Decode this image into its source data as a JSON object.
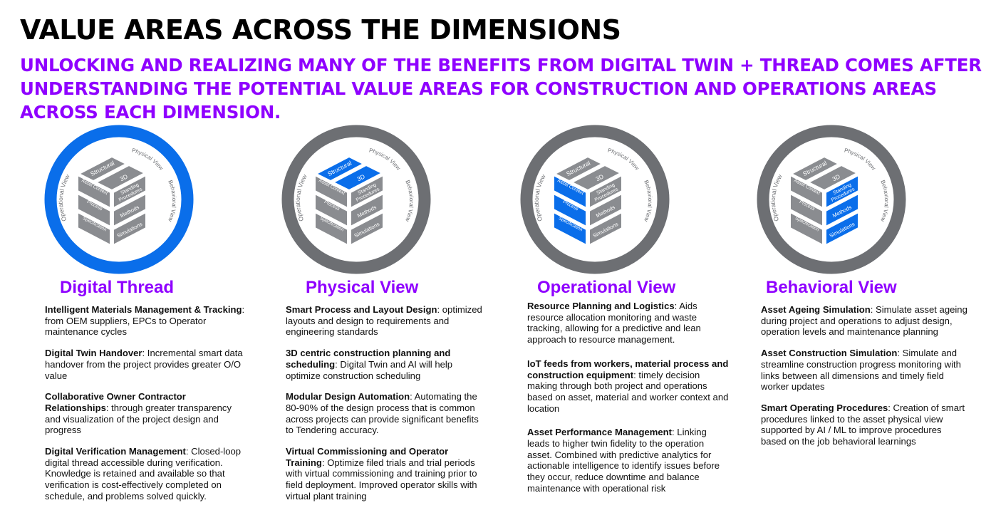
{
  "title": "VALUE AREAS ACROSS THE DIMENSIONS",
  "subtitle": "UNLOCKING AND REALIZING MANY OF THE BENEFITS FROM DIGITAL TWIN + THREAD COMES AFTER UNDERSTANDING THE POTENTIAL VALUE AREAS FOR CONSTRUCTION AND OPERATIONS AREAS ACROSS EACH DIMENSION.",
  "colors": {
    "accent": "#8f00ff",
    "highlight": "#0a6eea",
    "ring_default": "#6d6f73",
    "block_default": "#8a8c90"
  },
  "diagram_labels": {
    "ring": "Digital Thread",
    "physical_view": "Physical View",
    "operational_view": "Operational View",
    "behavioral_view": "Behavioral View",
    "structural": "Structural",
    "three_d": "3D",
    "asset_context": "Asset Context",
    "process": "Process",
    "specification": "Specification",
    "standing_procedures_1": "Standing",
    "standing_procedures_2": "Procedures",
    "methods": "Methods",
    "simulations": "Simulations"
  },
  "columns": [
    {
      "heading": "Digital Thread",
      "highlight": "ring",
      "items": [
        {
          "title": "Intelligent Materials Management & Tracking",
          "text": ": from OEM suppliers, EPCs to Operator maintenance cycles"
        },
        {
          "title": "Digital Twin Handover",
          "text": ": Incremental smart data handover from the project provides greater O/O value"
        },
        {
          "title": "Collaborative Owner Contractor Relationships",
          "text": ": through greater transparency and visualization of the project design and progress"
        },
        {
          "title": "Digital Verification Management",
          "text": ": Closed-loop digital thread accessible during verification. Knowledge is retained and available so that verification is cost-effectively completed on schedule, and problems  solved quickly."
        }
      ]
    },
    {
      "heading": "Physical View",
      "highlight": "top",
      "items": [
        {
          "title": "Smart Process  and Layout Design",
          "text": ": optimized layouts and design to requirements and engineering standards"
        },
        {
          "title": "3D centric construction planning and scheduling",
          "text": ": Digital Twin and AI will help optimize construction scheduling"
        },
        {
          "title": "Modular Design Automation",
          "text": ": Automating the 80-90% of the design process that is common across projects can provide significant benefits to Tendering accuracy."
        },
        {
          "title": "Virtual Commissioning and Operator Training",
          "text": ": Optimize filed trials and trial periods with virtual commissioning and training prior to field deployment. Improved operator skills with virtual plant training"
        }
      ]
    },
    {
      "heading": "Operational View",
      "highlight": "left",
      "items": [
        {
          "title": "Resource Planning and Logistics",
          "text": ": Aids resource allocation monitoring and waste tracking, allowing for a predictive and lean approach to resource management."
        },
        {
          "title": "IoT feeds from workers, material process and construction equipment",
          "text": ": timely decision making through both project and operations based on asset, material and worker context and location"
        },
        {
          "title": "Asset Performance Management",
          "text": ": Linking leads to higher twin fidelity to the operation asset. Combined with predictive analytics for actionable intelligence to identify issues before they occur, reduce downtime and balance maintenance with operational risk"
        }
      ]
    },
    {
      "heading": "Behavioral View",
      "highlight": "right",
      "items": [
        {
          "title": "Asset Ageing Simulation",
          "text": ": Simulate asset ageing during project and operations to adjust design, operation levels and maintenance planning"
        },
        {
          "title": "Asset Construction Simulation",
          "text": ": Simulate and streamline construction progress monitoring with links between all dimensions and timely field worker updates"
        },
        {
          "title": "Smart Operating Procedures",
          "text": ": Creation of smart procedures linked to the asset physical view supported by AI / ML to improve procedures based on the job behavioral learnings"
        }
      ]
    }
  ]
}
